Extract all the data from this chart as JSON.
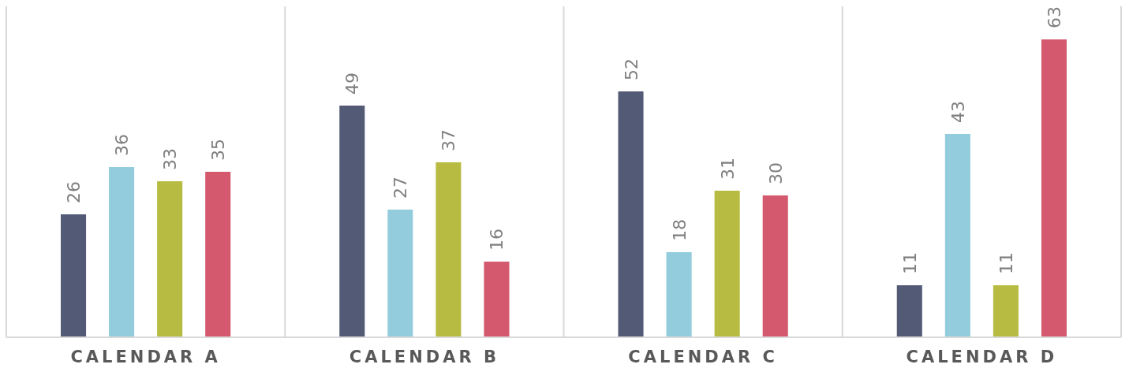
{
  "chart_data": {
    "type": "bar",
    "categories": [
      "CALENDAR A",
      "CALENDAR B",
      "CALENDAR C",
      "CALENDAR D"
    ],
    "series": [
      {
        "color": "#525a76",
        "values": [
          26,
          49,
          52,
          11
        ]
      },
      {
        "color": "#93cddd",
        "values": [
          36,
          27,
          18,
          43
        ]
      },
      {
        "color": "#b8bb41",
        "values": [
          33,
          37,
          31,
          11
        ]
      },
      {
        "color": "#d5596e",
        "values": [
          35,
          16,
          30,
          63
        ]
      }
    ],
    "ylim": [
      0,
      70
    ],
    "data_labels": true
  }
}
